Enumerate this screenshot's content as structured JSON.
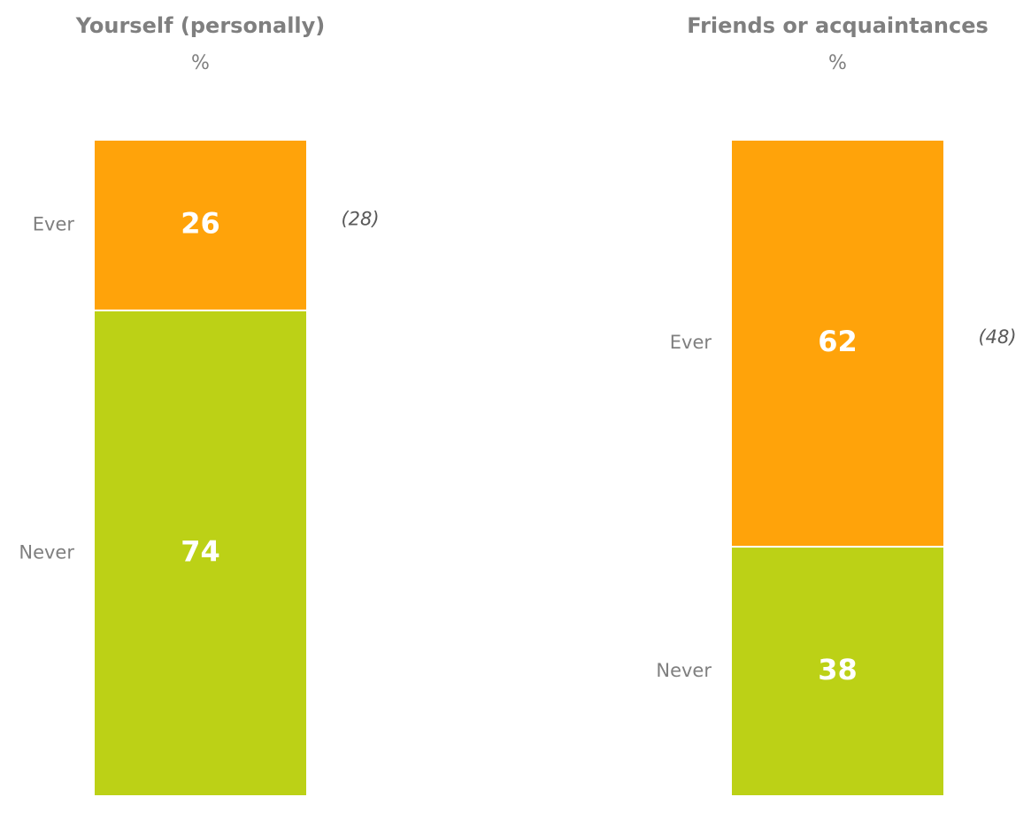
{
  "chart_data": [
    {
      "type": "stacked-bar",
      "title": "Yourself (personally)",
      "subtitle": "%",
      "annotation": "(28)",
      "ylim": [
        0,
        100
      ],
      "series": [
        {
          "name": "Ever",
          "color": "#ffa30a",
          "values": [
            26
          ]
        },
        {
          "name": "Never",
          "color": "#bcd116",
          "values": [
            74
          ]
        }
      ]
    },
    {
      "type": "stacked-bar",
      "title": "Friends or acquaintances",
      "subtitle": "%",
      "annotation": "(48)",
      "ylim": [
        0,
        100
      ],
      "series": [
        {
          "name": "Ever",
          "color": "#ffa30a",
          "values": [
            62
          ]
        },
        {
          "name": "Never",
          "color": "#bcd116",
          "values": [
            38
          ]
        }
      ]
    }
  ]
}
